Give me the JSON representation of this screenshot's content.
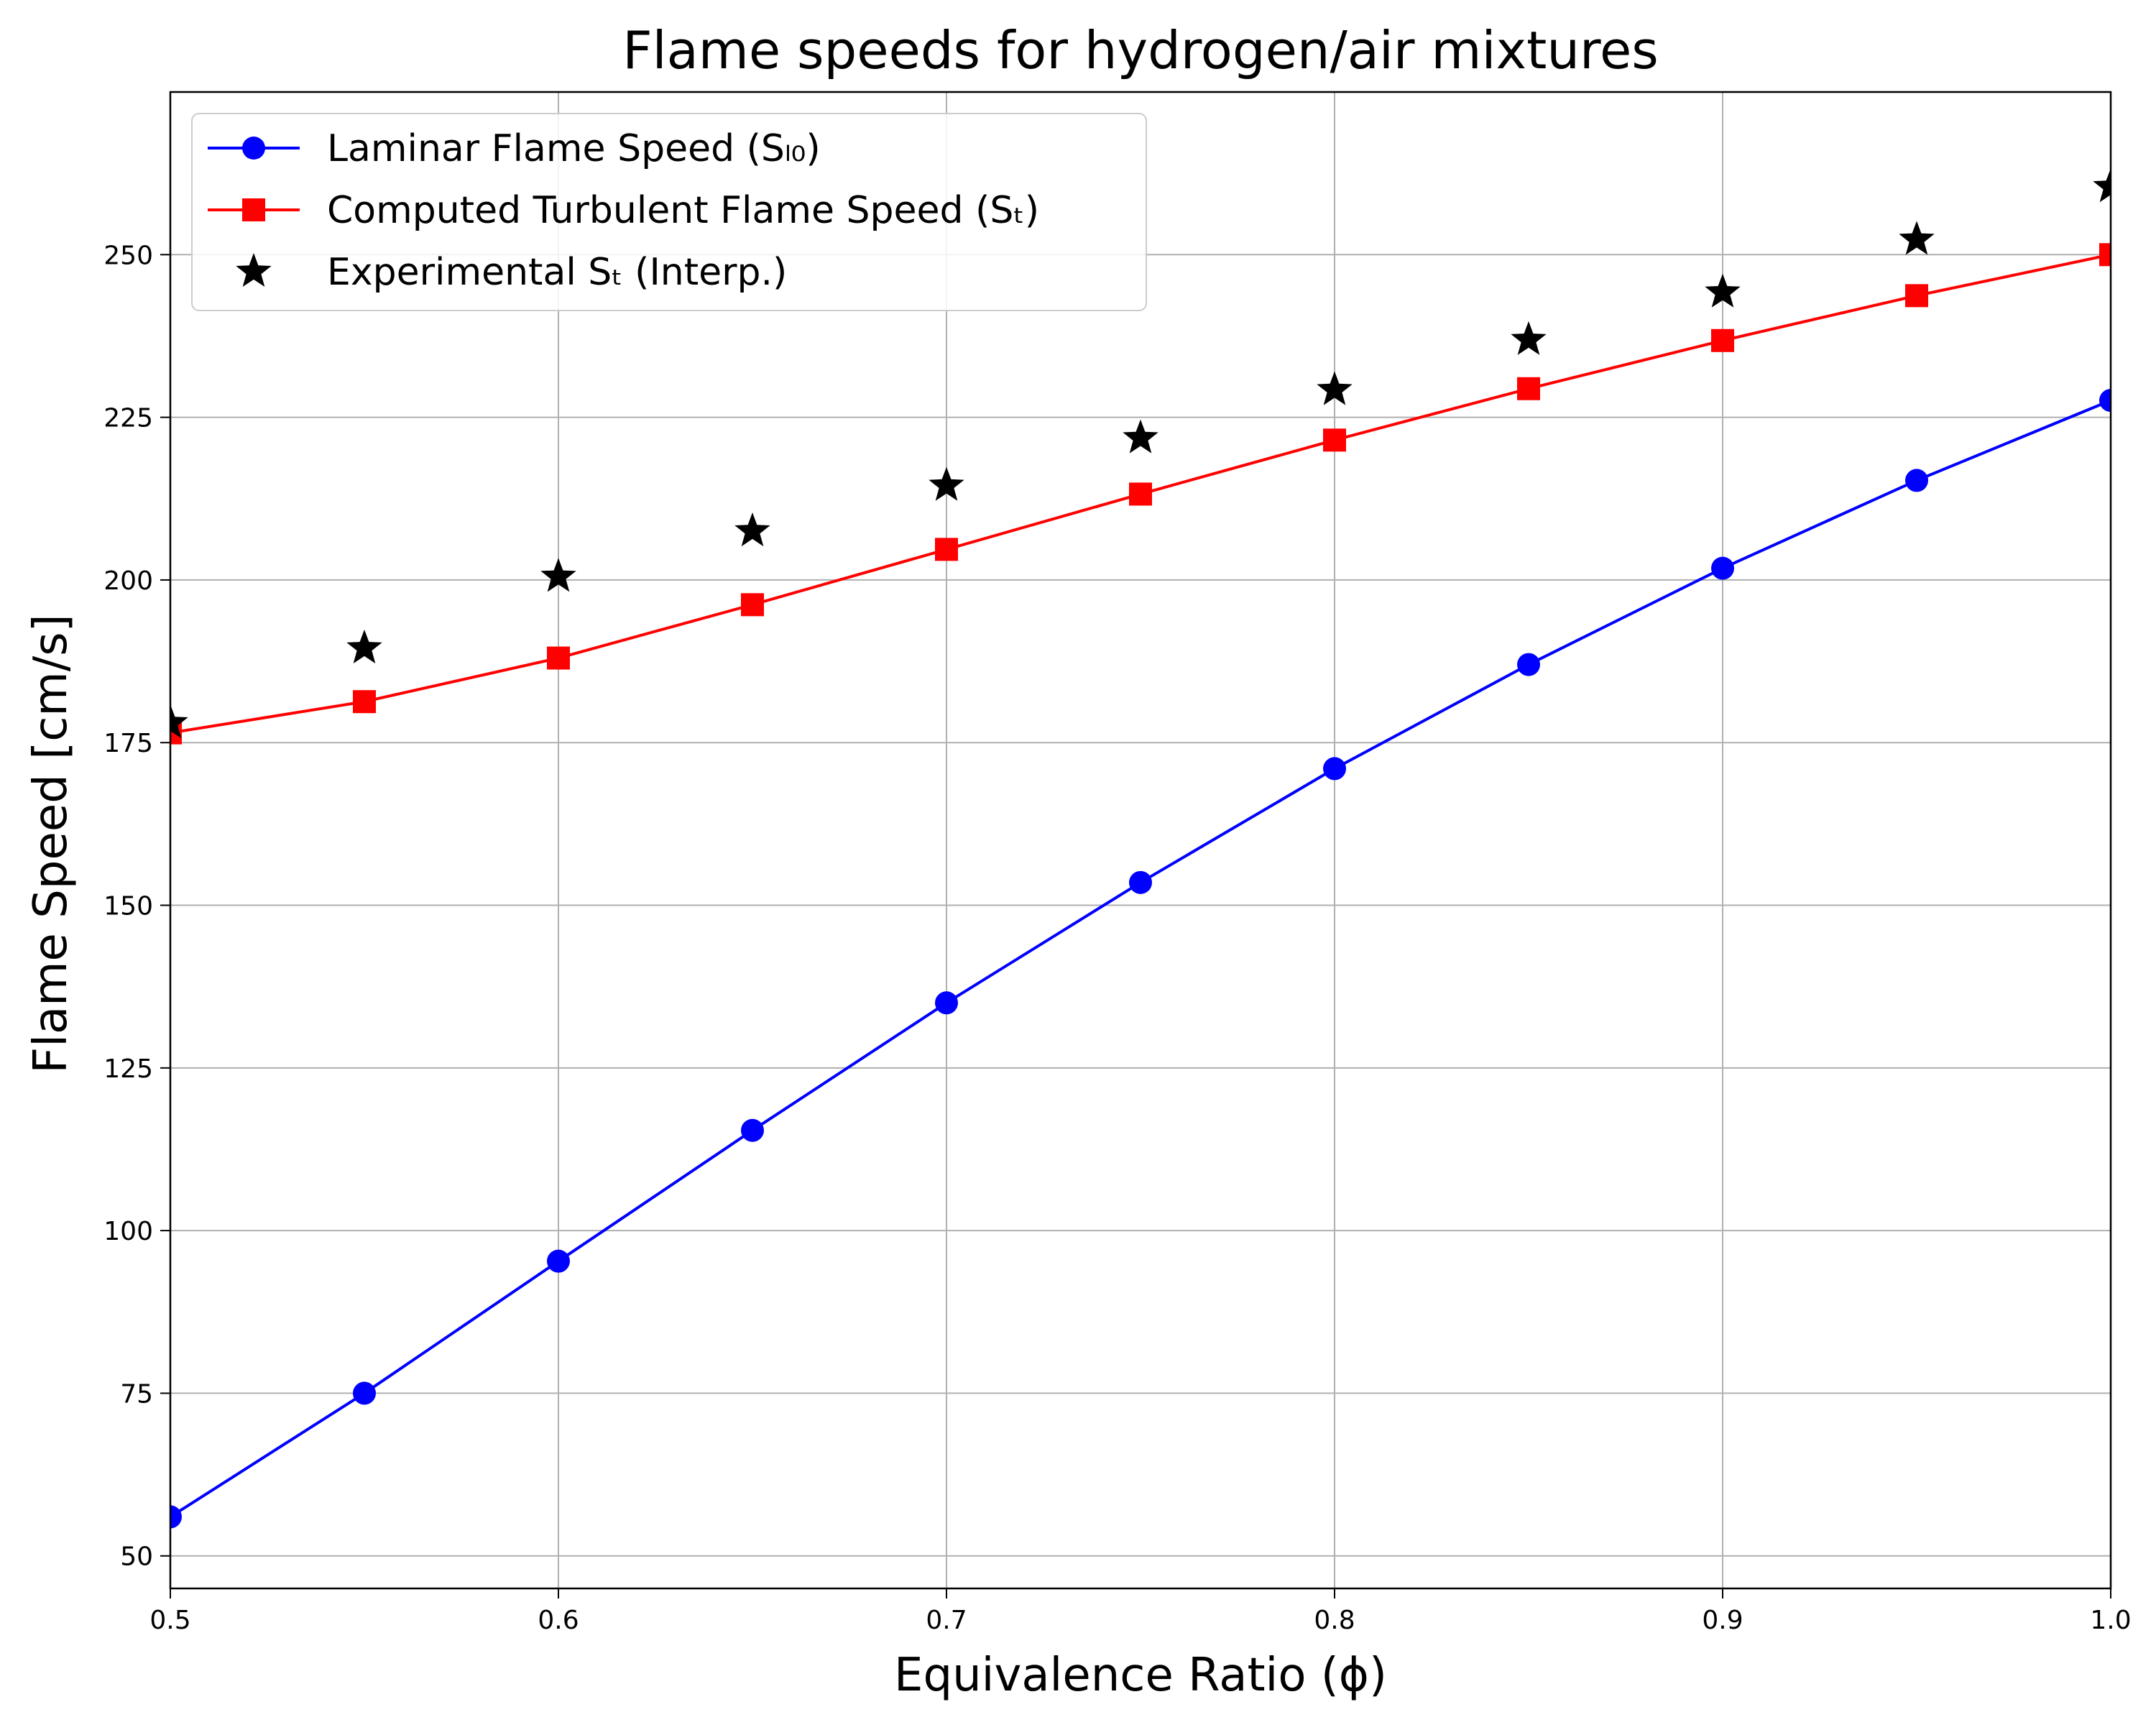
{
  "chart_data": {
    "type": "line",
    "title": "Flame speeds for hydrogen/air mixtures",
    "xlabel": "Equivalence Ratio (ϕ)",
    "ylabel": "Flame Speed [cm/s]",
    "xlim": [
      0.5,
      1.0
    ],
    "ylim": [
      45,
      275
    ],
    "grid": true,
    "legend_position": "top-left",
    "x_ticks": [
      {
        "value": 0.5,
        "label": "0.5"
      },
      {
        "value": 0.6,
        "label": "0.6"
      },
      {
        "value": 0.7,
        "label": "0.7"
      },
      {
        "value": 0.8,
        "label": "0.8"
      },
      {
        "value": 0.9,
        "label": "0.9"
      },
      {
        "value": 1.0,
        "label": "1.0"
      }
    ],
    "y_ticks": [
      {
        "value": 50,
        "label": "50"
      },
      {
        "value": 75,
        "label": "75"
      },
      {
        "value": 100,
        "label": "100"
      },
      {
        "value": 125,
        "label": "125"
      },
      {
        "value": 150,
        "label": "150"
      },
      {
        "value": 175,
        "label": "175"
      },
      {
        "value": 200,
        "label": "200"
      },
      {
        "value": 225,
        "label": "225"
      },
      {
        "value": 250,
        "label": "250"
      }
    ],
    "x": [
      0.5,
      0.55,
      0.6,
      0.65,
      0.7,
      0.75,
      0.8,
      0.85,
      0.9,
      0.95,
      1.0
    ],
    "series": [
      {
        "name": "Laminar Flame Speed (Sₗ₀)",
        "color": "#0000ff",
        "marker": "circle",
        "line": true,
        "values": [
          56,
          75,
          95.3,
          115.4,
          135,
          153.5,
          171,
          187,
          201.8,
          215.3,
          227.6
        ]
      },
      {
        "name": "Computed Turbulent Flame Speed (Sₜ)",
        "color": "#ff0000",
        "marker": "square",
        "line": true,
        "values": [
          176.5,
          181.3,
          188,
          196.2,
          204.7,
          213.2,
          221.5,
          229.4,
          236.8,
          243.7,
          250
        ]
      },
      {
        "name": "Experimental Sₜ (Interp.)",
        "color": "#000000",
        "marker": "star",
        "line": false,
        "values": [
          178,
          189.5,
          200.5,
          207.5,
          214.5,
          221.8,
          229.2,
          236.9,
          244.2,
          252.3,
          260.4
        ]
      }
    ]
  }
}
